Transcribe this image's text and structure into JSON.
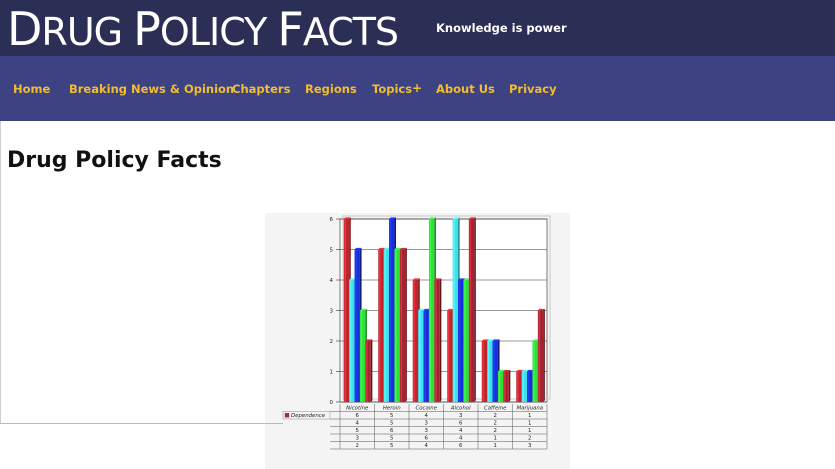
{
  "header": {
    "title_first": "D",
    "title_rest1": "RUG ",
    "title_p": "P",
    "title_rest2": "OLICY ",
    "title_f": "F",
    "title_rest3": "ACTS",
    "tagline": "Knowledge is power"
  },
  "nav": {
    "items": [
      "Home",
      "Breaking News & Opinion",
      "Chapters",
      "Regions",
      "Topics",
      "About Us",
      "Privacy"
    ],
    "topics_expand": "+"
  },
  "page": {
    "title": "Drug Policy Facts"
  },
  "colors": {
    "header_bg": "#2c2f55",
    "nav_bg": "#3d4282",
    "nav_text": "#f3bd2e"
  },
  "chart_data": {
    "type": "bar",
    "categories": [
      "Nicotine",
      "Heroin",
      "Cocaine",
      "Alcohol",
      "Caffeine",
      "Marijuana"
    ],
    "ylim": [
      0,
      6
    ],
    "yticks": [
      "0",
      "1",
      "2",
      "3",
      "4",
      "5",
      "6"
    ],
    "grid": true,
    "series": [
      {
        "name": "Dependence",
        "color": "#c0252e",
        "values": [
          6,
          5,
          4,
          3,
          2,
          1
        ]
      },
      {
        "name": "",
        "color": "#3fe0ee",
        "values": [
          4,
          5,
          3,
          6,
          2,
          1
        ]
      },
      {
        "name": "",
        "color": "#1a2fd8",
        "values": [
          5,
          6,
          3,
          4,
          2,
          1
        ]
      },
      {
        "name": "",
        "color": "#2fe03a",
        "values": [
          3,
          5,
          6,
          4,
          1,
          2
        ]
      },
      {
        "name": "",
        "color": "#a52330",
        "values": [
          2,
          5,
          4,
          6,
          1,
          3
        ]
      }
    ]
  }
}
